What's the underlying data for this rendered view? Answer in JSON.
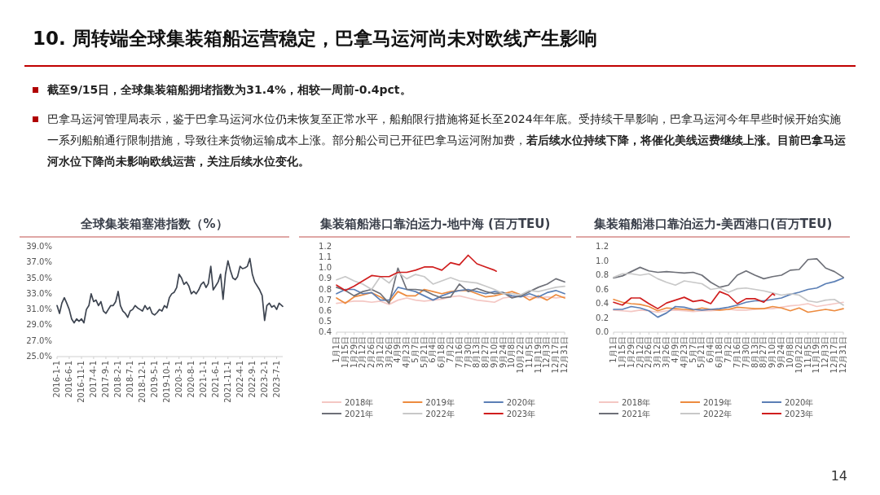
{
  "chart_data": [
    {
      "type": "other",
      "title": "10. 周转端全球集装箱船运营稳定，巴拿马运河尚未对欧线产生影响",
      "annotations": [
        "截至9/15日，全球集装箱船拥堵指数为31.4%，相较一周前-0.4pct。",
        "巴拿马运河管理局表示，鉴于巴拿马运河水位仍未恢复至正常水平，船舶限行措施将延长至2024年年底。受持续干旱影响，巴拿马运河今年早些时候开始实施一系列船舶通行限制措施，导致往来货物运输成本上涨。部分船公司已开征巴拿马运河附加费，",
        "若后续水位持续下降，将催化美线运费继续上涨。目前巴拿马运河水位下降尚未影响欧线运营，关注后续水位变化。",
        "14"
      ]
    },
    {
      "type": "line",
      "title": "全球集装箱塞港指数（%）",
      "xlim": [
        "2016-01-01",
        "2023-09-15"
      ],
      "ylim": [
        25,
        39
      ],
      "yticks": [
        {
          "value": 25,
          "label": "25.0%"
        },
        {
          "value": 27,
          "label": "27.0%"
        },
        {
          "value": 29,
          "label": "29.0%"
        },
        {
          "value": 31,
          "label": "31.0%"
        },
        {
          "value": 33,
          "label": "33.0%"
        },
        {
          "value": 35,
          "label": "35.0%"
        },
        {
          "value": 37,
          "label": "37.0%"
        },
        {
          "value": 39,
          "label": "39.0%"
        }
      ],
      "xticks": [
        {
          "value": "2016-01-01",
          "label": "2016-1-1"
        },
        {
          "value": "2016-06-01",
          "label": "2016-6-1"
        },
        {
          "value": "2016-11-01",
          "label": "2016-11-1"
        },
        {
          "value": "2017-04-01",
          "label": "2017-4-1"
        },
        {
          "value": "2017-09-01",
          "label": "2017-9-1"
        },
        {
          "value": "2018-02-01",
          "label": "2018-2-1"
        },
        {
          "value": "2018-07-01",
          "label": "2018-7-1"
        },
        {
          "value": "2018-12-01",
          "label": "2018-12-1"
        },
        {
          "value": "2019-05-01",
          "label": "2019-5-1"
        },
        {
          "value": "2019-10-01",
          "label": "2019-10-1"
        },
        {
          "value": "2020-03-01",
          "label": "2020-3-1"
        },
        {
          "value": "2020-08-01",
          "label": "2020-8-1"
        },
        {
          "value": "2021-01-01",
          "label": "2021-1-1"
        },
        {
          "value": "2021-06-01",
          "label": "2021-6-1"
        },
        {
          "value": "2021-11-01",
          "label": "2021-11-1"
        },
        {
          "value": "2022-04-01",
          "label": "2022-4-1"
        },
        {
          "value": "2022-09-01",
          "label": "2022-9-1"
        },
        {
          "value": "2023-02-01",
          "label": "2023-2-1"
        },
        {
          "value": "2023-07-01",
          "label": "2023-7-1"
        }
      ],
      "x": [
        "2016-01",
        "2016-02",
        "2016-03",
        "2016-04",
        "2016-05",
        "2016-06",
        "2016-07",
        "2016-08",
        "2016-09",
        "2016-10",
        "2016-11",
        "2016-12",
        "2017-01",
        "2017-02",
        "2017-03",
        "2017-04",
        "2017-05",
        "2017-06",
        "2017-07",
        "2017-08",
        "2017-09",
        "2017-10",
        "2017-11",
        "2017-12",
        "2018-01",
        "2018-02",
        "2018-03",
        "2018-04",
        "2018-05",
        "2018-06",
        "2018-07",
        "2018-08",
        "2018-09",
        "2018-10",
        "2018-11",
        "2018-12",
        "2019-01",
        "2019-02",
        "2019-03",
        "2019-04",
        "2019-05",
        "2019-06",
        "2019-07",
        "2019-08",
        "2019-09",
        "2019-10",
        "2019-11",
        "2019-12",
        "2020-01",
        "2020-02",
        "2020-03",
        "2020-04",
        "2020-05",
        "2020-06",
        "2020-07",
        "2020-08",
        "2020-09",
        "2020-10",
        "2020-11",
        "2020-12",
        "2021-01",
        "2021-02",
        "2021-03",
        "2021-04",
        "2021-05",
        "2021-06",
        "2021-07",
        "2021-08",
        "2021-09",
        "2021-10",
        "2021-11",
        "2021-12",
        "2022-01",
        "2022-02",
        "2022-03",
        "2022-04",
        "2022-05",
        "2022-06",
        "2022-07",
        "2022-08",
        "2022-09",
        "2022-10",
        "2022-11",
        "2022-12",
        "2023-01",
        "2023-02",
        "2023-03",
        "2023-04",
        "2023-05",
        "2023-06",
        "2023-07",
        "2023-08",
        "2023-09-15"
      ],
      "series": [
        {
          "color": "#3d4450",
          "values": [
            31.5,
            30.5,
            31.8,
            32.5,
            31.8,
            31.0,
            29.8,
            29.3,
            29.8,
            29.5,
            29.8,
            29.3,
            31.0,
            31.5,
            33.0,
            32.0,
            32.2,
            31.5,
            32.0,
            30.8,
            30.5,
            31.0,
            31.5,
            31.5,
            32.0,
            33.3,
            31.5,
            30.8,
            30.5,
            30.0,
            30.8,
            31.0,
            31.5,
            31.2,
            31.0,
            30.8,
            31.5,
            31.0,
            31.3,
            30.5,
            30.3,
            30.6,
            31.0,
            30.8,
            31.5,
            31.2,
            32.5,
            33.0,
            33.2,
            33.8,
            35.5,
            35.0,
            34.2,
            34.5,
            34.0,
            33.0,
            33.3,
            33.0,
            33.5,
            34.2,
            34.5,
            33.8,
            34.3,
            36.5,
            33.5,
            34.0,
            34.5,
            35.5,
            32.3,
            35.5,
            37.2,
            36.0,
            35.0,
            34.8,
            35.2,
            36.5,
            36.2,
            36.3,
            36.5,
            37.5,
            35.5,
            34.5,
            34.0,
            33.5,
            32.8,
            29.6,
            31.5,
            31.8,
            31.3,
            31.5,
            31.0,
            31.8,
            31.4
          ]
        }
      ]
    },
    {
      "type": "line",
      "title": "集装箱船港口靠泊运力-地中海 (百万TEU)",
      "legend": "bottom",
      "xlim": [
        "--01-01",
        "--12-31"
      ],
      "ylim": [
        0.4,
        1.2
      ],
      "yticks": [
        0.4,
        0.5,
        0.6,
        0.7,
        0.8,
        0.9,
        {
          "value": 1,
          "label": "1.0"
        },
        1.1,
        1.2
      ],
      "xticks": [
        {
          "value": "--01-01",
          "label": "1月1日"
        },
        {
          "value": "--01-15",
          "label": "1月15日"
        },
        {
          "value": "--01-29",
          "label": "1月29日"
        },
        {
          "value": "--02-12",
          "label": "2月12日"
        },
        {
          "value": "--02-26",
          "label": "2月26日"
        },
        {
          "value": "--03-12",
          "label": "3月12日"
        },
        {
          "value": "--03-26",
          "label": "3月26日"
        },
        {
          "value": "--04-09",
          "label": "4月9日"
        },
        {
          "value": "--04-23",
          "label": "4月23日"
        },
        {
          "value": "--05-07",
          "label": "5月7日"
        },
        {
          "value": "--05-21",
          "label": "5月21日"
        },
        {
          "value": "--06-04",
          "label": "6月4日"
        },
        {
          "value": "--06-18",
          "label": "6月18日"
        },
        {
          "value": "--07-02",
          "label": "7月2日"
        },
        {
          "value": "--07-16",
          "label": "7月16日"
        },
        {
          "value": "--07-30",
          "label": "7月30日"
        },
        {
          "value": "--08-13",
          "label": "8月13日"
        },
        {
          "value": "--08-27",
          "label": "8月27日"
        },
        {
          "value": "--09-10",
          "label": "9月10日"
        },
        {
          "value": "--09-24",
          "label": "9月24日"
        },
        {
          "value": "--10-08",
          "label": "10月8日"
        },
        {
          "value": "--10-22",
          "label": "10月22日"
        },
        {
          "value": "--11-05",
          "label": "11月5日"
        },
        {
          "value": "--11-19",
          "label": "11月19日"
        },
        {
          "value": "--12-03",
          "label": "12月3日"
        },
        {
          "value": "--12-17",
          "label": "12月17日"
        },
        {
          "value": "--12-31",
          "label": "12月31日"
        }
      ],
      "x": [
        "--01-01",
        "--01-15",
        "--01-29",
        "--02-12",
        "--02-26",
        "--03-12",
        "--03-26",
        "--04-09",
        "--04-23",
        "--05-07",
        "--05-21",
        "--06-04",
        "--06-18",
        "--07-02",
        "--07-16",
        "--07-30",
        "--08-13",
        "--08-27",
        "--09-10",
        "--09-24",
        "--10-08",
        "--10-22",
        "--11-05",
        "--11-19",
        "--12-03",
        "--12-17",
        "--12-31"
      ],
      "series": [
        {
          "name": "2018年",
          "color": "#f4c7c3",
          "values": [
            0.67,
            0.68,
            0.69,
            0.69,
            0.68,
            0.69,
            0.66,
            0.7,
            0.72,
            0.7,
            0.69,
            0.7,
            0.71,
            0.73,
            0.74,
            0.72,
            0.7,
            0.69,
            0.68,
            0.72,
            0.73,
            0.74,
            0.73,
            0.72,
            0.73,
            0.72,
            0.73
          ]
        },
        {
          "name": "2019年",
          "color": "#ed8b3f",
          "values": [
            0.72,
            0.67,
            0.73,
            0.75,
            0.77,
            0.73,
            0.68,
            0.78,
            0.74,
            0.74,
            0.8,
            0.78,
            0.76,
            0.78,
            0.79,
            0.79,
            0.76,
            0.73,
            0.74,
            0.76,
            0.78,
            0.75,
            0.7,
            0.74,
            0.7,
            0.75,
            0.72
          ]
        },
        {
          "name": "2020年",
          "color": "#5b7fb5",
          "values": [
            0.76,
            0.8,
            0.8,
            0.76,
            0.77,
            0.7,
            0.7,
            0.82,
            0.8,
            0.78,
            0.74,
            0.7,
            0.74,
            0.77,
            0.79,
            0.8,
            0.78,
            0.76,
            0.78,
            0.77,
            0.74,
            0.73,
            0.76,
            0.73,
            0.77,
            0.79,
            0.76
          ]
        },
        {
          "name": "2021年",
          "color": "#6e7078",
          "values": [
            0.82,
            0.79,
            0.74,
            0.78,
            0.8,
            0.76,
            0.67,
            1.0,
            0.8,
            0.8,
            0.79,
            0.75,
            0.72,
            0.73,
            0.85,
            0.78,
            0.81,
            0.78,
            0.76,
            0.77,
            0.72,
            0.74,
            0.78,
            0.82,
            0.85,
            0.9,
            0.87
          ]
        },
        {
          "name": "2022年",
          "color": "#c8c8c8",
          "values": [
            0.89,
            0.92,
            0.88,
            0.85,
            0.8,
            0.92,
            0.86,
            0.96,
            0.9,
            0.94,
            0.92,
            0.85,
            0.88,
            0.91,
            0.88,
            0.87,
            0.86,
            0.83,
            0.8,
            0.76,
            0.76,
            0.75,
            0.79,
            0.78,
            0.8,
            0.82,
            0.83
          ]
        },
        {
          "name": "2023年",
          "color": "#d01e1e",
          "x": [
            "--01-01",
            "--01-15",
            "--01-29",
            "--02-12",
            "--02-26",
            "--03-12",
            "--03-26",
            "--04-09",
            "--04-23",
            "--05-07",
            "--05-21",
            "--06-04",
            "--06-18",
            "--07-02",
            "--07-16",
            "--07-30",
            "--08-13",
            "--08-27",
            "--09-10",
            "--09-13"
          ],
          "values": [
            0.84,
            0.79,
            0.83,
            0.88,
            0.93,
            0.92,
            0.92,
            0.96,
            0.96,
            0.98,
            1.01,
            1.01,
            0.98,
            1.05,
            1.03,
            1.12,
            1.04,
            1.01,
            0.98,
            0.97
          ]
        }
      ]
    },
    {
      "type": "line",
      "title": "集装箱船港口靠泊运力-美西港口(百万TEU)",
      "legend": "bottom",
      "xlim": [
        "--01-01",
        "--12-31"
      ],
      "ylim": [
        0,
        1.2
      ],
      "yticks": [
        {
          "value": 0,
          "label": "0.0"
        },
        0.2,
        0.4,
        0.6,
        0.8,
        {
          "value": 1,
          "label": "1.0"
        },
        1.2
      ],
      "xticks": [
        {
          "value": "--01-01",
          "label": "1月1日"
        },
        {
          "value": "--01-15",
          "label": "1月15日"
        },
        {
          "value": "--01-29",
          "label": "1月29日"
        },
        {
          "value": "--02-12",
          "label": "2月12日"
        },
        {
          "value": "--02-26",
          "label": "2月26日"
        },
        {
          "value": "--03-12",
          "label": "3月12日"
        },
        {
          "value": "--03-26",
          "label": "3月26日"
        },
        {
          "value": "--04-09",
          "label": "4月9日"
        },
        {
          "value": "--04-23",
          "label": "4月23日"
        },
        {
          "value": "--05-07",
          "label": "5月7日"
        },
        {
          "value": "--05-21",
          "label": "5月21日"
        },
        {
          "value": "--06-04",
          "label": "6月4日"
        },
        {
          "value": "--06-18",
          "label": "6月18日"
        },
        {
          "value": "--07-02",
          "label": "7月2日"
        },
        {
          "value": "--07-16",
          "label": "7月16日"
        },
        {
          "value": "--07-30",
          "label": "7月30日"
        },
        {
          "value": "--08-13",
          "label": "8月13日"
        },
        {
          "value": "--08-27",
          "label": "8月27日"
        },
        {
          "value": "--09-10",
          "label": "9月10日"
        },
        {
          "value": "--09-24",
          "label": "9月24日"
        },
        {
          "value": "--10-08",
          "label": "10月8日"
        },
        {
          "value": "--10-22",
          "label": "10月22日"
        },
        {
          "value": "--11-05",
          "label": "11月5日"
        },
        {
          "value": "--11-19",
          "label": "11月19日"
        },
        {
          "value": "--12-03",
          "label": "12月3日"
        },
        {
          "value": "--12-17",
          "label": "12月17日"
        },
        {
          "value": "--12-31",
          "label": "12月31日"
        }
      ],
      "x": [
        "--01-01",
        "--01-15",
        "--01-29",
        "--02-12",
        "--02-26",
        "--03-12",
        "--03-26",
        "--04-09",
        "--04-23",
        "--05-07",
        "--05-21",
        "--06-04",
        "--06-18",
        "--07-02",
        "--07-16",
        "--07-30",
        "--08-13",
        "--08-27",
        "--09-10",
        "--09-24",
        "--10-08",
        "--10-22",
        "--11-05",
        "--11-19",
        "--12-03",
        "--12-17",
        "--12-31"
      ],
      "series": [
        {
          "name": "2018年",
          "color": "#f4c7c3",
          "values": [
            0.31,
            0.3,
            0.29,
            0.31,
            0.3,
            0.28,
            0.3,
            0.31,
            0.3,
            0.29,
            0.3,
            0.3,
            0.31,
            0.32,
            0.31,
            0.31,
            0.32,
            0.33,
            0.33,
            0.35,
            0.37,
            0.38,
            0.4,
            0.36,
            0.38,
            0.4,
            0.42
          ]
        },
        {
          "name": "2019年",
          "color": "#ed8b3f",
          "values": [
            0.46,
            0.42,
            0.4,
            0.39,
            0.36,
            0.3,
            0.34,
            0.33,
            0.32,
            0.31,
            0.34,
            0.32,
            0.31,
            0.32,
            0.35,
            0.34,
            0.33,
            0.33,
            0.36,
            0.34,
            0.3,
            0.34,
            0.28,
            0.3,
            0.32,
            0.3,
            0.33
          ]
        },
        {
          "name": "2020年",
          "color": "#5b7fb5",
          "values": [
            0.32,
            0.32,
            0.36,
            0.34,
            0.3,
            0.21,
            0.27,
            0.36,
            0.35,
            0.32,
            0.31,
            0.32,
            0.33,
            0.35,
            0.38,
            0.42,
            0.44,
            0.44,
            0.46,
            0.48,
            0.53,
            0.56,
            0.6,
            0.62,
            0.68,
            0.71,
            0.76
          ]
        },
        {
          "name": "2021年",
          "color": "#6e7078",
          "values": [
            0.76,
            0.79,
            0.85,
            0.91,
            0.86,
            0.84,
            0.85,
            0.84,
            0.83,
            0.84,
            0.8,
            0.7,
            0.63,
            0.66,
            0.8,
            0.86,
            0.8,
            0.75,
            0.78,
            0.8,
            0.87,
            0.88,
            1.02,
            1.03,
            0.9,
            0.85,
            0.77
          ]
        },
        {
          "name": "2022年",
          "color": "#c8c8c8",
          "values": [
            0.77,
            0.82,
            0.82,
            0.8,
            0.82,
            0.75,
            0.7,
            0.66,
            0.72,
            0.7,
            0.68,
            0.6,
            0.62,
            0.56,
            0.61,
            0.62,
            0.6,
            0.58,
            0.55,
            0.52,
            0.54,
            0.52,
            0.44,
            0.42,
            0.45,
            0.46,
            0.38
          ]
        },
        {
          "name": "2023年",
          "color": "#d01e1e",
          "x": [
            "--01-01",
            "--01-15",
            "--01-29",
            "--02-12",
            "--02-26",
            "--03-12",
            "--03-26",
            "--04-09",
            "--04-23",
            "--05-07",
            "--05-21",
            "--06-04",
            "--06-18",
            "--07-02",
            "--07-16",
            "--07-30",
            "--08-13",
            "--08-27",
            "--09-10",
            "--09-13"
          ],
          "values": [
            0.42,
            0.38,
            0.48,
            0.48,
            0.4,
            0.33,
            0.41,
            0.45,
            0.49,
            0.43,
            0.45,
            0.4,
            0.57,
            0.52,
            0.4,
            0.47,
            0.47,
            0.42,
            0.54,
            0.52
          ]
        }
      ]
    }
  ]
}
